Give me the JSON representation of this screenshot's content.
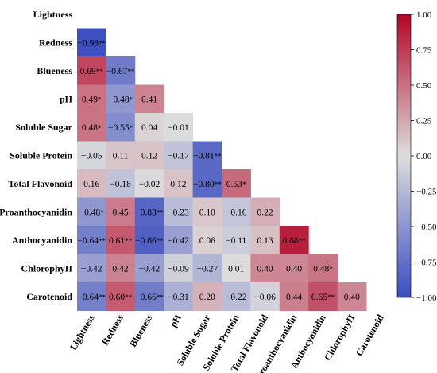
{
  "chart_data": {
    "type": "heatmap",
    "variables": [
      "Lightness",
      "Redness",
      "Blueness",
      "pH",
      "Soluble Sugar",
      "Soluble Protein",
      "Total Flavonoid",
      "Proanthocyanidin",
      "Anthocyanidin",
      "ChlorophyII",
      "Carotenoid"
    ],
    "cells": [
      {
        "row": 1,
        "col": 0,
        "value": -0.98,
        "label": "-0.98",
        "sig": "**"
      },
      {
        "row": 2,
        "col": 0,
        "value": 0.69,
        "label": "0.69",
        "sig": "**"
      },
      {
        "row": 2,
        "col": 1,
        "value": -0.67,
        "label": "-0.67",
        "sig": "**"
      },
      {
        "row": 3,
        "col": 0,
        "value": 0.49,
        "label": "0.49",
        "sig": "*"
      },
      {
        "row": 3,
        "col": 1,
        "value": -0.48,
        "label": "-0.48",
        "sig": "*"
      },
      {
        "row": 3,
        "col": 2,
        "value": 0.41,
        "label": "0.41",
        "sig": ""
      },
      {
        "row": 4,
        "col": 0,
        "value": 0.48,
        "label": "0.48",
        "sig": "*"
      },
      {
        "row": 4,
        "col": 1,
        "value": -0.55,
        "label": "-0.55",
        "sig": "*"
      },
      {
        "row": 4,
        "col": 2,
        "value": 0.04,
        "label": "0.04",
        "sig": ""
      },
      {
        "row": 4,
        "col": 3,
        "value": -0.01,
        "label": "-0.01",
        "sig": ""
      },
      {
        "row": 5,
        "col": 0,
        "value": -0.05,
        "label": "-0.05",
        "sig": ""
      },
      {
        "row": 5,
        "col": 1,
        "value": 0.11,
        "label": "0.11",
        "sig": ""
      },
      {
        "row": 5,
        "col": 2,
        "value": 0.12,
        "label": "0.12",
        "sig": ""
      },
      {
        "row": 5,
        "col": 3,
        "value": -0.17,
        "label": "-0.17",
        "sig": ""
      },
      {
        "row": 5,
        "col": 4,
        "value": -0.81,
        "label": "-0.81",
        "sig": "**"
      },
      {
        "row": 6,
        "col": 0,
        "value": 0.16,
        "label": "0.16",
        "sig": ""
      },
      {
        "row": 6,
        "col": 1,
        "value": -0.18,
        "label": "-0.18",
        "sig": ""
      },
      {
        "row": 6,
        "col": 2,
        "value": -0.02,
        "label": "-0.02",
        "sig": ""
      },
      {
        "row": 6,
        "col": 3,
        "value": 0.12,
        "label": "0.12",
        "sig": ""
      },
      {
        "row": 6,
        "col": 4,
        "value": -0.8,
        "label": "-0.80",
        "sig": "**"
      },
      {
        "row": 6,
        "col": 5,
        "value": 0.53,
        "label": "0.53",
        "sig": "*"
      },
      {
        "row": 7,
        "col": 0,
        "value": -0.48,
        "label": "-0.48",
        "sig": "*"
      },
      {
        "row": 7,
        "col": 1,
        "value": 0.45,
        "label": "0.45",
        "sig": ""
      },
      {
        "row": 7,
        "col": 2,
        "value": -0.83,
        "label": "-0.83",
        "sig": "**"
      },
      {
        "row": 7,
        "col": 3,
        "value": -0.23,
        "label": "-0.23",
        "sig": ""
      },
      {
        "row": 7,
        "col": 4,
        "value": 0.1,
        "label": "0.10",
        "sig": ""
      },
      {
        "row": 7,
        "col": 5,
        "value": -0.16,
        "label": "-0.16",
        "sig": ""
      },
      {
        "row": 7,
        "col": 6,
        "value": 0.22,
        "label": "0.22",
        "sig": ""
      },
      {
        "row": 8,
        "col": 0,
        "value": -0.64,
        "label": "-0.64",
        "sig": "**"
      },
      {
        "row": 8,
        "col": 1,
        "value": 0.61,
        "label": "0.61",
        "sig": "**"
      },
      {
        "row": 8,
        "col": 2,
        "value": -0.86,
        "label": "-0.86",
        "sig": "**"
      },
      {
        "row": 8,
        "col": 3,
        "value": -0.42,
        "label": "-0.42",
        "sig": ""
      },
      {
        "row": 8,
        "col": 4,
        "value": 0.06,
        "label": "0.06",
        "sig": ""
      },
      {
        "row": 8,
        "col": 5,
        "value": -0.11,
        "label": "-0.11",
        "sig": ""
      },
      {
        "row": 8,
        "col": 6,
        "value": 0.13,
        "label": "0.13",
        "sig": ""
      },
      {
        "row": 8,
        "col": 7,
        "value": 0.88,
        "label": "0.88",
        "sig": "**"
      },
      {
        "row": 9,
        "col": 0,
        "value": -0.42,
        "label": "-0.42",
        "sig": ""
      },
      {
        "row": 9,
        "col": 1,
        "value": 0.42,
        "label": "0.42",
        "sig": ""
      },
      {
        "row": 9,
        "col": 2,
        "value": -0.42,
        "label": "-0.42",
        "sig": ""
      },
      {
        "row": 9,
        "col": 3,
        "value": -0.09,
        "label": "-0.09",
        "sig": ""
      },
      {
        "row": 9,
        "col": 4,
        "value": -0.27,
        "label": "-0.27",
        "sig": ""
      },
      {
        "row": 9,
        "col": 5,
        "value": 0.01,
        "label": "0.01",
        "sig": ""
      },
      {
        "row": 9,
        "col": 6,
        "value": 0.4,
        "label": "0.40",
        "sig": ""
      },
      {
        "row": 9,
        "col": 7,
        "value": 0.4,
        "label": "0.40",
        "sig": ""
      },
      {
        "row": 9,
        "col": 8,
        "value": 0.48,
        "label": "0.48",
        "sig": "*"
      },
      {
        "row": 10,
        "col": 0,
        "value": -0.64,
        "label": "-0.64",
        "sig": "**"
      },
      {
        "row": 10,
        "col": 1,
        "value": 0.6,
        "label": "0.60",
        "sig": "**"
      },
      {
        "row": 10,
        "col": 2,
        "value": -0.66,
        "label": "-0.66",
        "sig": "**"
      },
      {
        "row": 10,
        "col": 3,
        "value": -0.31,
        "label": "-0.31",
        "sig": ""
      },
      {
        "row": 10,
        "col": 4,
        "value": 0.2,
        "label": "0.20",
        "sig": ""
      },
      {
        "row": 10,
        "col": 5,
        "value": -0.22,
        "label": "-0.22",
        "sig": ""
      },
      {
        "row": 10,
        "col": 6,
        "value": -0.06,
        "label": "-0.06",
        "sig": ""
      },
      {
        "row": 10,
        "col": 7,
        "value": 0.44,
        "label": "0.44",
        "sig": ""
      },
      {
        "row": 10,
        "col": 8,
        "value": 0.65,
        "label": "0.65",
        "sig": "**"
      },
      {
        "row": 10,
        "col": 9,
        "value": 0.4,
        "label": "0.40",
        "sig": ""
      }
    ],
    "colorbar": {
      "range": [
        -1.0,
        1.0
      ],
      "ticks": [
        "1.00",
        "0.75",
        "0.50",
        "0.25",
        "0.00",
        "-0.25",
        "-0.50",
        "-0.75",
        "-1.00"
      ],
      "colormap": [
        "#3b4cc0",
        "#dddddd",
        "#b40426"
      ]
    },
    "layout": "lower-triangle"
  }
}
